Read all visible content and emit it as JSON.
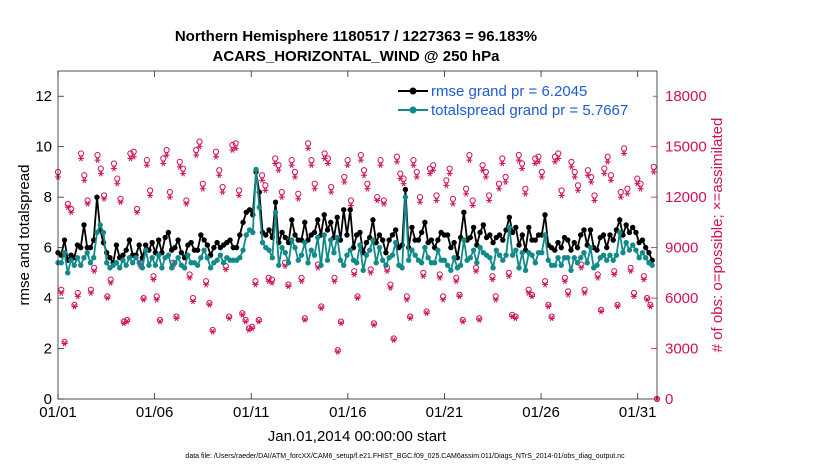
{
  "chart_data": {
    "type": "line",
    "title_line1": "Northern Hemisphere 1180517 / 1227363 = 96.183%",
    "title_line2": "ACARS_HORIZONTAL_WIND @ 250 hPa",
    "xlabel": "Jan.01,2014 00:00:00 start",
    "ylabel_left": "rmse and totalspread",
    "ylabel_right": "# of obs: o=possible; ×=assimilated",
    "footer": "data file: /Users/raeder/DAI/ATM_forcXX/CAM6_setup/f.e21.FHIST_BGC.f09_025.CAM6assim.011/Diags_NTrS_2014-01/obs_diag_output.nc",
    "x_tick_labels": [
      "01/01",
      "01/06",
      "01/11",
      "01/16",
      "01/21",
      "01/26",
      "01/31"
    ],
    "x_tick_days": [
      0,
      5,
      10,
      15,
      20,
      25,
      30
    ],
    "xlim": [
      0,
      31
    ],
    "y_left_ticks": [
      "0",
      "2",
      "4",
      "6",
      "8",
      "10",
      "12"
    ],
    "ylim_left": [
      0,
      13
    ],
    "y_right_ticks": [
      "0",
      "3000",
      "6000",
      "9000",
      "12000",
      "15000",
      "18000"
    ],
    "ylim_right": [
      0,
      19500
    ],
    "colors": {
      "rmse": "#000000",
      "spread": "#138a8a",
      "obs": "#d0115a",
      "legend_text": "#1f5ad4"
    },
    "series": [
      {
        "name": "rmse",
        "legend": "rmse grand pr = 6.2045",
        "values": [
          5.8,
          5.7,
          6.3,
          5.5,
          5.7,
          5.6,
          6.1,
          6.0,
          6.9,
          6.0,
          6.0,
          6.3,
          8.0,
          6.7,
          6.2,
          5.8,
          5.6,
          5.4,
          6.1,
          5.6,
          5.7,
          5.9,
          6.3,
          5.7,
          5.7,
          6.1,
          5.6,
          6.1,
          5.9,
          6.2,
          5.8,
          6.3,
          5.8,
          6.4,
          6.6,
          5.9,
          6.0,
          6.3,
          5.8,
          5.6,
          6.1,
          6.2,
          5.9,
          5.9,
          6.5,
          6.3,
          6.1,
          5.7,
          6.0,
          6.2,
          6.0,
          6.1,
          6.2,
          6.3,
          6.0,
          6.0,
          6.5,
          7.0,
          7.4,
          7.5,
          7.3,
          9.0,
          8.2,
          6.6,
          6.5,
          6.7,
          6.4,
          7.8,
          6.2,
          6.6,
          6.4,
          6.2,
          7.1,
          6.5,
          6.3,
          6.3,
          7.0,
          6.3,
          6.5,
          6.6,
          7.1,
          6.5,
          7.3,
          6.7,
          7.0,
          6.4,
          7.2,
          6.3,
          7.5,
          6.5,
          7.5,
          6.0,
          6.5,
          6.6,
          5.8,
          6.2,
          6.4,
          7.1,
          6.2,
          6.5,
          6.3,
          5.8,
          6.3,
          6.5,
          6.7,
          6.0,
          6.1,
          8.3,
          6.0,
          6.8,
          6.3,
          6.3,
          6.6,
          7.0,
          6.2,
          6.3,
          6.0,
          6.3,
          6.6,
          6.5,
          6.5,
          6.0,
          6.2,
          5.6,
          6.4,
          7.4,
          6.3,
          6.4,
          6.8,
          6.1,
          6.6,
          6.9,
          6.4,
          6.5,
          6.2,
          6.4,
          6.5,
          6.3,
          6.7,
          7.2,
          6.6,
          6.8,
          6.1,
          6.5,
          5.9,
          6.8,
          6.3,
          6.3,
          6.5,
          6.5,
          7.3,
          6.1,
          6.0,
          5.9,
          6.2,
          6.0,
          6.4,
          6.3,
          5.9,
          6.2,
          6.0,
          6.5,
          6.7,
          6.1,
          6.7,
          6.0,
          5.9,
          6.4,
          6.5,
          6.0,
          6.5,
          6.3,
          6.7,
          7.1,
          6.5,
          6.9,
          6.6,
          6.8,
          6.6,
          6.2,
          6.3,
          6.0,
          5.8,
          5.5
        ]
      },
      {
        "name": "totalspread",
        "legend": "totalspread grand pr = 5.7667",
        "values": [
          5.4,
          5.4,
          5.8,
          5.0,
          5.5,
          5.3,
          5.6,
          5.3,
          5.6,
          5.8,
          5.4,
          5.6,
          6.6,
          6.9,
          6.6,
          5.4,
          5.2,
          5.3,
          5.4,
          5.2,
          5.5,
          5.3,
          5.6,
          5.4,
          5.6,
          5.4,
          5.2,
          5.9,
          5.3,
          5.6,
          5.3,
          5.7,
          5.2,
          5.6,
          5.7,
          5.2,
          5.4,
          5.6,
          5.3,
          5.2,
          5.7,
          5.4,
          5.4,
          5.3,
          5.6,
          5.9,
          5.6,
          5.2,
          5.4,
          5.5,
          5.7,
          5.4,
          5.6,
          5.5,
          5.5,
          5.5,
          5.6,
          5.9,
          6.5,
          6.7,
          6.6,
          9.1,
          7.6,
          6.2,
          6.0,
          5.9,
          5.6,
          7.4,
          5.3,
          6.0,
          5.8,
          5.4,
          6.3,
          6.0,
          5.5,
          5.7,
          6.2,
          5.4,
          5.9,
          5.7,
          6.4,
          5.3,
          6.5,
          5.5,
          6.3,
          5.8,
          6.4,
          5.5,
          5.3,
          5.7,
          5.9,
          5.5,
          5.4,
          6.1,
          5.1,
          5.7,
          5.9,
          6.3,
          5.4,
          6.0,
          5.5,
          5.3,
          5.6,
          5.7,
          6.2,
          5.3,
          5.2,
          8.0,
          5.5,
          5.9,
          5.7,
          5.5,
          5.4,
          6.0,
          5.6,
          5.4,
          5.4,
          5.9,
          5.5,
          5.5,
          5.3,
          5.1,
          5.6,
          5.2,
          5.3,
          6.3,
          5.5,
          5.6,
          5.9,
          5.4,
          6.0,
          5.8,
          5.7,
          5.6,
          5.2,
          5.9,
          5.7,
          5.5,
          5.7,
          6.8,
          5.7,
          5.9,
          5.2,
          5.8,
          5.1,
          5.8,
          5.7,
          5.4,
          5.8,
          5.8,
          6.5,
          5.5,
          5.3,
          5.3,
          5.6,
          5.3,
          5.6,
          5.6,
          5.1,
          5.6,
          5.4,
          5.6,
          5.8,
          5.4,
          6.0,
          5.2,
          5.3,
          5.6,
          5.7,
          5.5,
          5.7,
          5.5,
          5.7,
          6.6,
          5.8,
          6.2,
          5.9,
          6.1,
          5.9,
          5.6,
          5.8,
          5.6,
          5.4,
          5.3
        ]
      },
      {
        "name": "obs_possible",
        "values": [
          13500,
          6500,
          3400,
          11600,
          11300,
          5600,
          6300,
          14600,
          13300,
          11800,
          6500,
          7800,
          14500,
          13700,
          12100,
          6100,
          7100,
          14000,
          13100,
          11900,
          4600,
          4700,
          14600,
          14700,
          11300,
          8100,
          6000,
          14200,
          12400,
          7300,
          6100,
          4700,
          14300,
          14800,
          12300,
          8100,
          4900,
          14100,
          13700,
          11800,
          7400,
          6000,
          14800,
          15300,
          12800,
          7000,
          5700,
          4100,
          14700,
          13600,
          12600,
          7900,
          4900,
          15100,
          15200,
          12400,
          5100,
          4700,
          4200,
          4300,
          7000,
          4700,
          13300,
          12700,
          7200,
          7100,
          14300,
          13900,
          12300,
          8100,
          6800,
          14200,
          13500,
          12200,
          7200,
          4800,
          15200,
          14200,
          12800,
          8000,
          5500,
          14600,
          14300,
          12600,
          7200,
          2900,
          4600,
          13200,
          14200,
          11800,
          7600,
          6100,
          14500,
          13600,
          12800,
          7700,
          4500,
          12000,
          14200,
          11800,
          7800,
          6800,
          3600,
          14400,
          13400,
          13100,
          6100,
          4900,
          14200,
          13500,
          12000,
          7500,
          5200,
          13700,
          13900,
          12100,
          7400,
          6100,
          13000,
          13700,
          11900,
          7200,
          6200,
          4700,
          12500,
          14500,
          11800,
          7800,
          4800,
          13900,
          13500,
          12100,
          7300,
          6100,
          12800,
          14300,
          13200,
          7500,
          5000,
          4900,
          14500,
          14000,
          12500,
          6500,
          6200,
          14300,
          14400,
          13500,
          7000,
          5600,
          4900,
          14400,
          14600,
          12400,
          7200,
          6400,
          14100,
          13500,
          12700,
          8000,
          6500,
          13600,
          13200,
          12100,
          7400,
          5300,
          13700,
          14400,
          13300,
          7600,
          5600,
          12300,
          14900,
          12500,
          7800,
          6300,
          13100,
          12800,
          7300,
          6000,
          5600,
          13800,
          0
        ]
      },
      {
        "name": "obs_assimilated",
        "values": [
          13200,
          6300,
          3300,
          11400,
          11100,
          5500,
          6100,
          14300,
          13000,
          11600,
          6300,
          7600,
          14200,
          13400,
          11900,
          6000,
          6900,
          13700,
          12800,
          11700,
          4500,
          4600,
          14300,
          14400,
          11100,
          7900,
          5900,
          13900,
          12100,
          7100,
          5900,
          4600,
          14000,
          14500,
          12000,
          7900,
          4800,
          13800,
          13400,
          11600,
          7200,
          5800,
          14500,
          15000,
          12500,
          6800,
          5600,
          4000,
          14400,
          13300,
          12300,
          7700,
          4800,
          14800,
          14900,
          12100,
          5000,
          4600,
          4100,
          4200,
          6800,
          4600,
          13000,
          12400,
          7000,
          6900,
          14000,
          13600,
          12000,
          7900,
          6700,
          13900,
          13200,
          11900,
          7000,
          4700,
          14900,
          13900,
          12500,
          7800,
          5400,
          14300,
          14000,
          12300,
          7000,
          2800,
          4500,
          12900,
          13900,
          11500,
          7400,
          6000,
          14200,
          13300,
          12500,
          7500,
          4400,
          11800,
          13900,
          11600,
          7600,
          6600,
          3500,
          14100,
          13100,
          12800,
          5900,
          4800,
          13900,
          13200,
          11700,
          7300,
          5100,
          13400,
          13600,
          11800,
          7200,
          5900,
          12700,
          13400,
          11600,
          7000,
          6100,
          4600,
          12200,
          14200,
          11500,
          7600,
          4700,
          13600,
          13200,
          11800,
          7100,
          5900,
          12500,
          14000,
          12900,
          7300,
          4900,
          4800,
          14200,
          13700,
          12200,
          6300,
          6100,
          14000,
          14100,
          13200,
          6800,
          5500,
          4800,
          14100,
          14300,
          12100,
          7000,
          6200,
          13800,
          13200,
          12400,
          7800,
          6300,
          13300,
          12900,
          11800,
          7200,
          5200,
          13400,
          14100,
          13000,
          7400,
          5500,
          12000,
          14600,
          12200,
          7600,
          6100,
          12800,
          12500,
          7100,
          5900,
          5500,
          13500,
          0
        ]
      }
    ]
  }
}
